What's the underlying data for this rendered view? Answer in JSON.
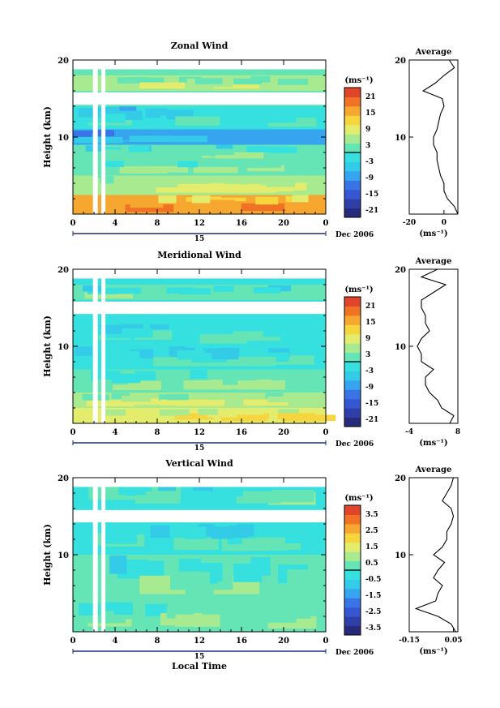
{
  "figure": {
    "common": {
      "ylabel": "Height (km)",
      "unit_label": "(ms⁻¹)",
      "date_label": "15",
      "month_label": "Dec 2006",
      "time_ticks": [
        "0",
        "4",
        "8",
        "12",
        "16",
        "20",
        "0"
      ],
      "height_ticks": [
        "20",
        "10"
      ]
    },
    "panels": [
      {
        "title": "Zonal Wind",
        "show_xlabel": false,
        "colorbar_ticks": [
          "21",
          "15",
          "9",
          "3",
          "-3",
          "-9",
          "-15",
          "-21"
        ],
        "avg": {
          "title": "Average",
          "xticks": [
            "-20",
            "0"
          ],
          "xlabel": "(ms⁻¹)"
        }
      },
      {
        "title": "Meridional Wind",
        "show_xlabel": false,
        "colorbar_ticks": [
          "21",
          "15",
          "9",
          "3",
          "-3",
          "-9",
          "-15",
          "-21"
        ],
        "avg": {
          "title": "Average",
          "xticks": [
            "-4",
            "8"
          ],
          "xlabel": "(ms⁻¹)"
        }
      },
      {
        "title": "Vertical Wind",
        "show_xlabel": true,
        "xlabel": "Local Time",
        "colorbar_ticks": [
          "3.5",
          "2.5",
          "1.5",
          "0.5",
          "-0.5",
          "-1.5",
          "-2.5",
          "-3.5"
        ],
        "avg": {
          "title": "Average",
          "xticks": [
            "-0.15",
            "0.05"
          ],
          "xlabel": "(ms⁻¹)"
        }
      }
    ]
  },
  "chart_data": [
    {
      "type": "heatmap",
      "title": "Zonal Wind",
      "xlabel": "",
      "ylabel": "Height (km)",
      "xlim": [
        0,
        24
      ],
      "ylim": [
        0,
        20
      ],
      "colorbar": {
        "label": "(ms⁻¹)",
        "range": [
          -24,
          24
        ],
        "ticks": [
          -21,
          -15,
          -9,
          -3,
          3,
          9,
          15,
          21
        ]
      },
      "bands": [
        {
          "h": [
            0,
            2.5
          ],
          "value": 14
        },
        {
          "h": [
            2.5,
            5
          ],
          "value": 6
        },
        {
          "h": [
            5,
            7
          ],
          "value": 3
        },
        {
          "h": [
            7,
            9
          ],
          "value": 0
        },
        {
          "h": [
            9,
            11
          ],
          "value": -9
        },
        {
          "h": [
            11,
            14
          ],
          "value": -3
        },
        {
          "h": [
            16,
            18
          ],
          "value": 4
        }
      ],
      "average_profile": {
        "xlim": [
          -20,
          8
        ],
        "height": [
          0,
          1,
          2,
          3,
          4,
          5,
          6,
          7,
          8,
          9,
          10,
          11,
          12,
          13,
          14,
          15,
          16,
          17,
          18,
          19,
          20
        ],
        "value": [
          8,
          6,
          2,
          0,
          0,
          -2,
          -3,
          -4,
          -4,
          -6,
          -6,
          -4,
          -3,
          -2,
          0,
          -1,
          -12,
          -5,
          0,
          6,
          3
        ]
      }
    },
    {
      "type": "heatmap",
      "title": "Meridional Wind",
      "xlabel": "",
      "ylabel": "Height (km)",
      "xlim": [
        0,
        24
      ],
      "ylim": [
        0,
        20
      ],
      "colorbar": {
        "label": "(ms⁻¹)",
        "range": [
          -24,
          24
        ],
        "ticks": [
          -21,
          -15,
          -9,
          -3,
          3,
          9,
          15,
          21
        ]
      },
      "bands": [
        {
          "h": [
            0,
            2
          ],
          "value": 9
        },
        {
          "h": [
            2,
            4
          ],
          "value": 5
        },
        {
          "h": [
            4,
            7
          ],
          "value": 1
        },
        {
          "h": [
            7,
            10
          ],
          "value": -2
        },
        {
          "h": [
            10,
            13
          ],
          "value": -1
        },
        {
          "h": [
            16,
            18
          ],
          "value": 0
        }
      ],
      "average_profile": {
        "xlim": [
          -4,
          8
        ],
        "height": [
          0,
          1,
          2,
          3,
          4,
          5,
          6,
          7,
          8,
          9,
          10,
          11,
          12,
          13,
          14,
          15,
          16,
          17,
          18,
          19,
          20
        ],
        "value": [
          6,
          7,
          4,
          3,
          1,
          0,
          0,
          2,
          -1,
          -1,
          -2,
          -1,
          1,
          0,
          0,
          -1,
          -1,
          2,
          5,
          -1,
          3
        ]
      }
    },
    {
      "type": "heatmap",
      "title": "Vertical Wind",
      "xlabel": "Local Time",
      "ylabel": "Height (km)",
      "xlim": [
        0,
        24
      ],
      "ylim": [
        0,
        20
      ],
      "colorbar": {
        "label": "(ms⁻¹)",
        "range": [
          -4,
          4
        ],
        "ticks": [
          -3.5,
          -2.5,
          -1.5,
          -0.5,
          0.5,
          1.5,
          2.5,
          3.5
        ]
      },
      "bands": [
        {
          "h": [
            0,
            4
          ],
          "value": 0.3
        },
        {
          "h": [
            4,
            10
          ],
          "value": 0.05
        },
        {
          "h": [
            10,
            14
          ],
          "value": -0.1
        },
        {
          "h": [
            16,
            20
          ],
          "value": -0.05
        }
      ],
      "average_profile": {
        "xlim": [
          -0.15,
          0.07
        ],
        "height": [
          0,
          1,
          2,
          3,
          4,
          5,
          6,
          7,
          8,
          9,
          10,
          11,
          12,
          13,
          14,
          15,
          16,
          17,
          18,
          19,
          20
        ],
        "value": [
          0.06,
          0.04,
          -0.02,
          -0.12,
          -0.03,
          -0.02,
          0.0,
          -0.04,
          -0.02,
          0.01,
          -0.04,
          0.0,
          0.02,
          0.02,
          0.04,
          0.05,
          0.04,
          0.0,
          0.02,
          0.04,
          0.05
        ]
      }
    }
  ]
}
